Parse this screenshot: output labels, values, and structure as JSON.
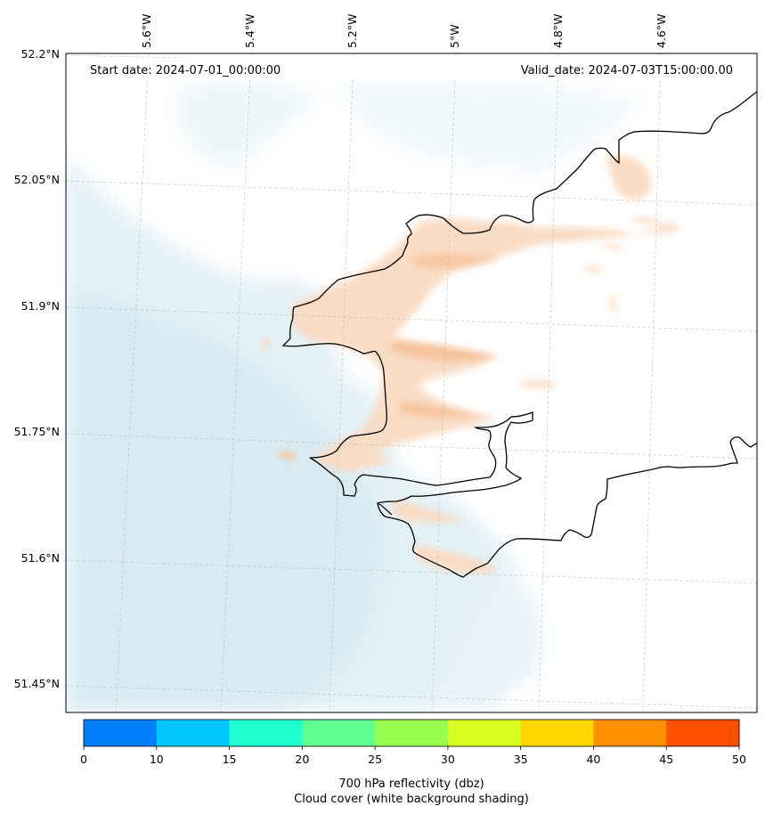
{
  "header": {
    "start_date": "Start date: 2024-07-01_00:00:00",
    "valid_date": "Valid_date: 2024-07-03T15:00:00.00"
  },
  "axes": {
    "lon_labels": [
      "5.6°W",
      "5.4°W",
      "5.2°W",
      "5°W",
      "4.8°W",
      "4.6°W"
    ],
    "lat_labels": [
      "52.2°N",
      "52.05°N",
      "51.9°N",
      "51.75°N",
      "51.6°N",
      "51.45°N"
    ]
  },
  "colorbar": {
    "ticks": [
      "0",
      "10",
      "15",
      "20",
      "25",
      "30",
      "35",
      "40",
      "45",
      "50"
    ],
    "colors": [
      "#0080ff",
      "#00c8ff",
      "#20ffd0",
      "#60ff90",
      "#98ff50",
      "#d8ff20",
      "#ffd800",
      "#ff9000",
      "#ff5000"
    ],
    "title_line1": "700 hPa reflectivity (dbz)",
    "title_line2": "Cloud cover (white background shading)"
  },
  "palette": {
    "sea_shade": "#d6eaf1",
    "reflectivity_low": "#f9d2b4",
    "coastline": "#000000",
    "gridline": "#bbbbbb"
  }
}
